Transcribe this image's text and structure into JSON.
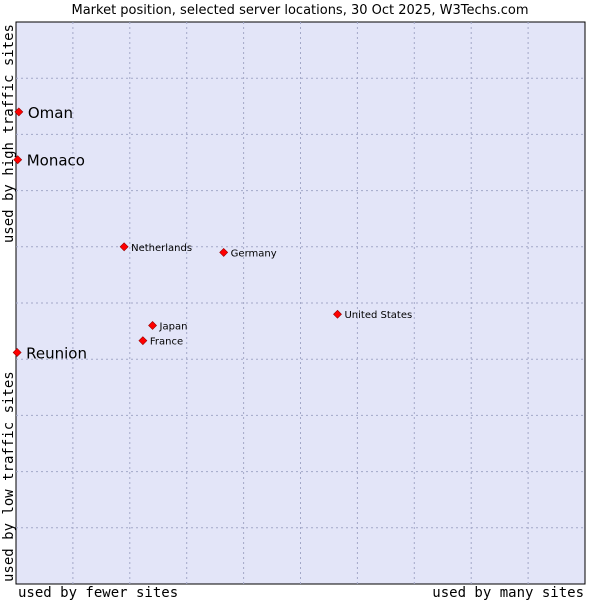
{
  "chart_data": {
    "type": "scatter",
    "title": "Market position, selected server locations, 30 Oct 2025, W3Techs.com",
    "xlabel_left": "used by fewer sites",
    "xlabel_right": "used by many sites",
    "ylabel_top": "used by high traffic sites",
    "ylabel_bottom": "used by low traffic sites",
    "xlim": [
      0,
      100
    ],
    "ylim": [
      0,
      100
    ],
    "grid": true,
    "colors": {
      "plot_bg": "#e3e5f8",
      "grid": "#a3a8c8",
      "marker": "#ff0000",
      "marker_edge": "#990000"
    },
    "points": [
      {
        "name": "Oman",
        "x": 0.5,
        "y": 84,
        "emphasis": true
      },
      {
        "name": "Monaco",
        "x": 0.3,
        "y": 75.5,
        "emphasis": true
      },
      {
        "name": "Netherlands",
        "x": 19,
        "y": 60,
        "emphasis": false
      },
      {
        "name": "Germany",
        "x": 36.5,
        "y": 59,
        "emphasis": false
      },
      {
        "name": "United States",
        "x": 56.5,
        "y": 48,
        "emphasis": false
      },
      {
        "name": "Japan",
        "x": 24,
        "y": 46,
        "emphasis": false
      },
      {
        "name": "France",
        "x": 22.3,
        "y": 43.3,
        "emphasis": false
      },
      {
        "name": "Reunion",
        "x": 0.2,
        "y": 41.2,
        "emphasis": true
      }
    ]
  }
}
